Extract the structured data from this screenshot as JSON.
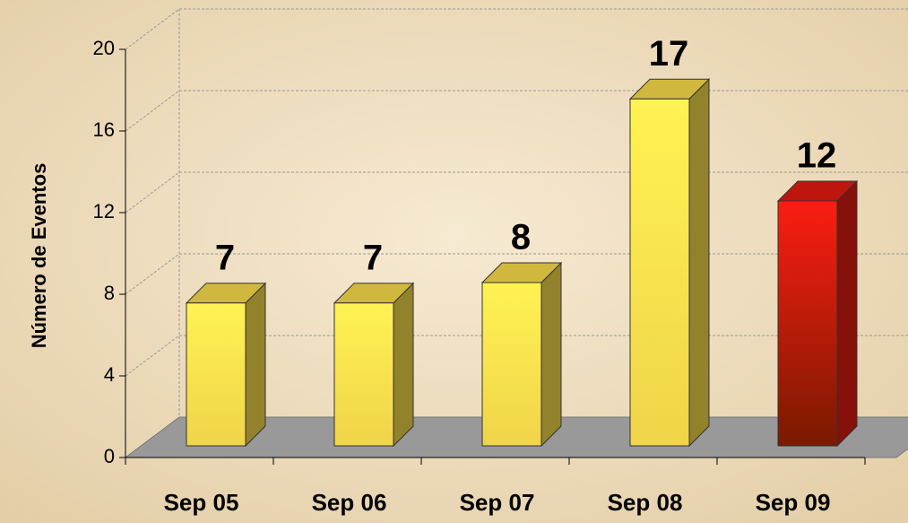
{
  "chart_data": {
    "type": "bar3d",
    "y_axis_label": "Número de Eventos",
    "categories": [
      "Sep 05",
      "Sep 06",
      "Sep 07",
      "Sep 08",
      "Sep 09"
    ],
    "values": [
      7,
      7,
      8,
      17,
      12
    ],
    "colors": [
      "#f5d84a",
      "#f5d84a",
      "#f5d84a",
      "#f5d84a",
      "#e01a10"
    ],
    "ylim": [
      0,
      20
    ],
    "yticks": [
      0,
      4,
      8,
      12,
      16,
      20
    ],
    "grid": true
  }
}
